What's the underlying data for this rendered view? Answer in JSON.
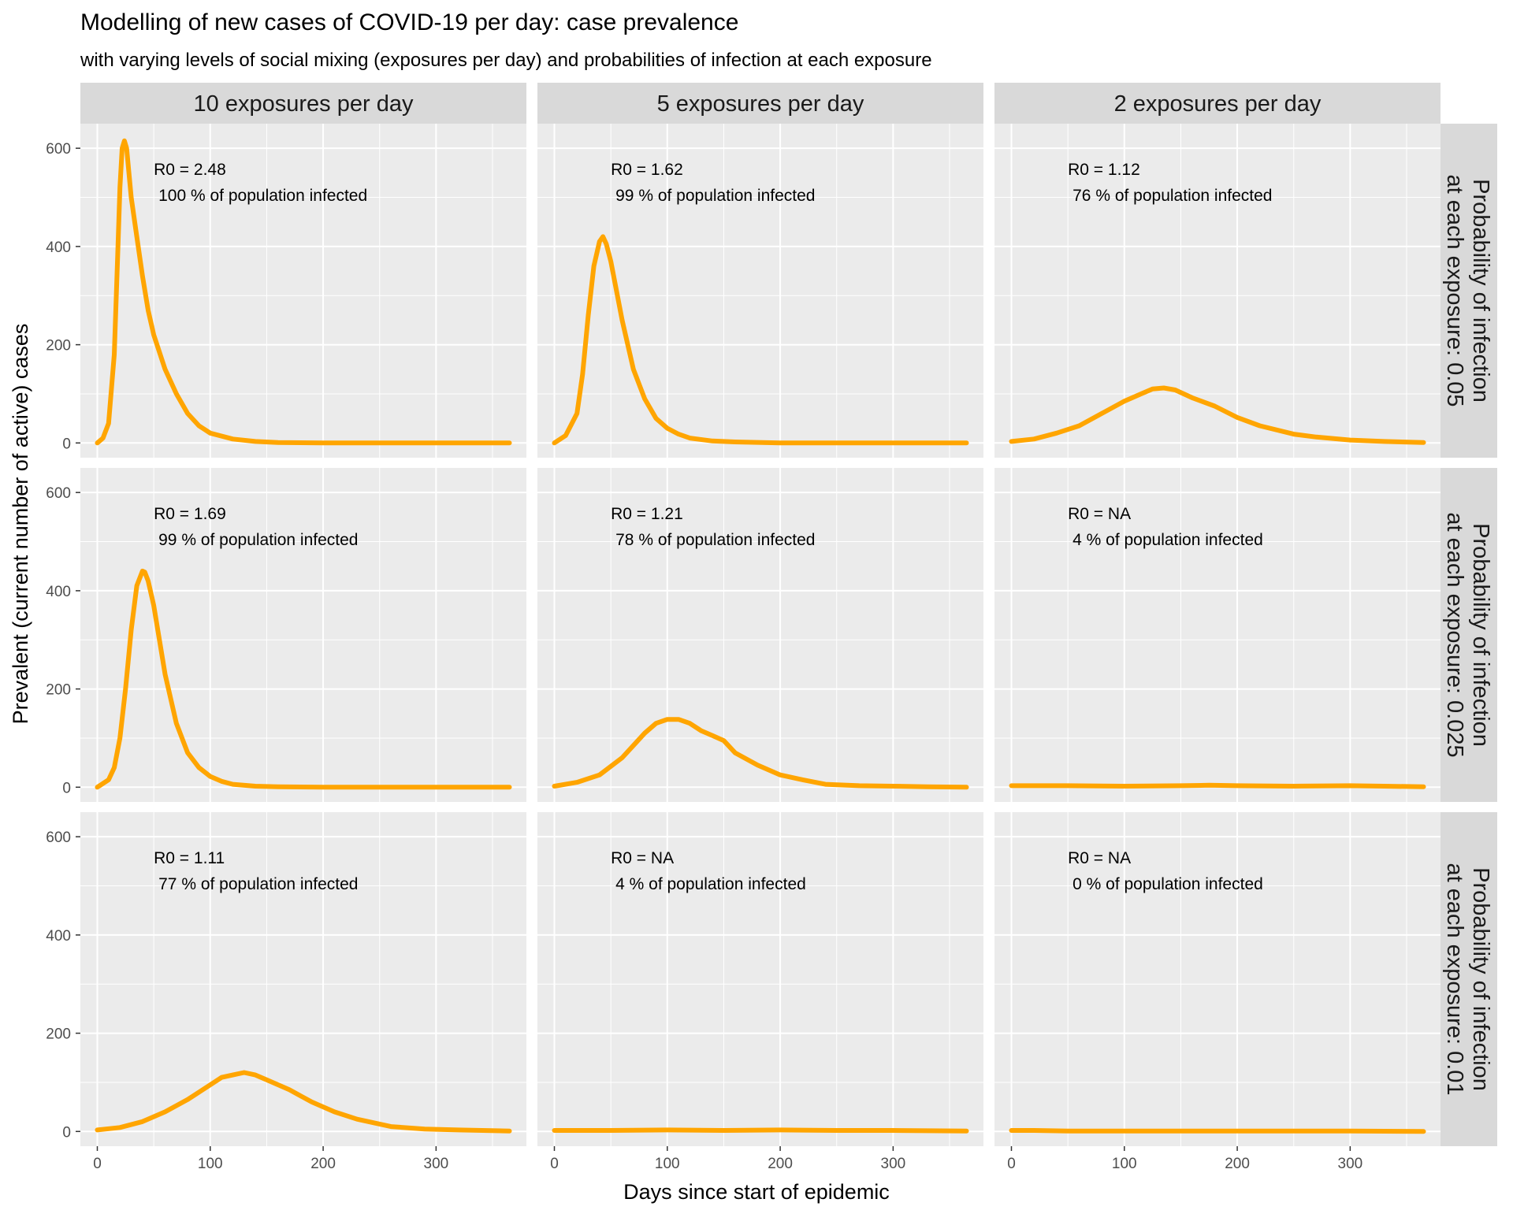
{
  "chart_data": {
    "type": "line",
    "title": "Modelling of new cases of COVID-19 per day: case prevalence",
    "subtitle": "with varying levels of social mixing (exposures per day) and probabilities of infection at each exposure",
    "xlabel": "Days since start of epidemic",
    "ylabel": "Prevalent (current number of active) cases",
    "xlim": [
      -15,
      380
    ],
    "ylim": [
      -30,
      650
    ],
    "x_ticks": [
      0,
      100,
      200,
      300
    ],
    "y_ticks": [
      0,
      200,
      400,
      600
    ],
    "grid": true,
    "line_color": "#FFA500",
    "panel_background": "#EBEBEB",
    "strip_background": "#D9D9D9",
    "column_labels": [
      "10 exposures per day",
      "5 exposures per day",
      "2 exposures per day"
    ],
    "row_labels": [
      [
        "Probability of infection",
        "at each exposure: 0.05"
      ],
      [
        "Probability of infection",
        "at each exposure: 0.025"
      ],
      [
        "Probability of infection",
        "at each exposure: 0.01"
      ]
    ],
    "panels": [
      {
        "row": 0,
        "col": 0,
        "annotation": [
          "R0 = 2.48",
          "100 % of population infected"
        ],
        "x": [
          0,
          5,
          10,
          15,
          18,
          20,
          22,
          24,
          26,
          28,
          30,
          35,
          40,
          45,
          50,
          60,
          70,
          80,
          90,
          100,
          120,
          140,
          160,
          200,
          250,
          300,
          365
        ],
        "y": [
          0,
          10,
          40,
          180,
          380,
          520,
          600,
          615,
          600,
          550,
          500,
          420,
          340,
          270,
          220,
          150,
          100,
          60,
          35,
          20,
          8,
          3,
          1,
          0,
          0,
          0,
          0
        ]
      },
      {
        "row": 0,
        "col": 1,
        "annotation": [
          "R0 = 1.62",
          "99 % of population infected"
        ],
        "x": [
          0,
          10,
          20,
          25,
          30,
          35,
          40,
          43,
          46,
          50,
          55,
          60,
          70,
          80,
          90,
          100,
          110,
          120,
          140,
          160,
          200,
          250,
          300,
          365
        ],
        "y": [
          0,
          15,
          60,
          140,
          260,
          360,
          410,
          420,
          405,
          370,
          310,
          250,
          150,
          90,
          50,
          30,
          18,
          10,
          4,
          2,
          0,
          0,
          0,
          0
        ]
      },
      {
        "row": 0,
        "col": 2,
        "annotation": [
          "R0 = 1.12",
          "76 % of population infected"
        ],
        "x": [
          0,
          20,
          40,
          60,
          80,
          100,
          115,
          125,
          135,
          145,
          160,
          180,
          200,
          220,
          250,
          270,
          300,
          330,
          365
        ],
        "y": [
          3,
          8,
          20,
          35,
          60,
          85,
          100,
          110,
          112,
          108,
          92,
          75,
          52,
          35,
          18,
          12,
          6,
          3,
          1
        ]
      },
      {
        "row": 1,
        "col": 0,
        "annotation": [
          "R0 = 1.69",
          "99 % of population infected"
        ],
        "x": [
          0,
          10,
          15,
          20,
          25,
          30,
          35,
          40,
          42,
          45,
          50,
          55,
          60,
          70,
          80,
          90,
          100,
          110,
          120,
          140,
          160,
          200,
          250,
          300,
          365
        ],
        "y": [
          0,
          15,
          40,
          100,
          200,
          320,
          410,
          440,
          438,
          420,
          370,
          300,
          230,
          130,
          70,
          40,
          22,
          12,
          6,
          2,
          1,
          0,
          0,
          0,
          0
        ]
      },
      {
        "row": 1,
        "col": 1,
        "annotation": [
          "R0 = 1.21",
          "78 % of population infected"
        ],
        "x": [
          0,
          20,
          40,
          60,
          70,
          80,
          90,
          100,
          110,
          120,
          130,
          140,
          150,
          160,
          180,
          200,
          220,
          240,
          270,
          300,
          330,
          365
        ],
        "y": [
          2,
          10,
          25,
          60,
          85,
          110,
          130,
          138,
          138,
          130,
          115,
          105,
          95,
          70,
          45,
          25,
          15,
          6,
          3,
          2,
          1,
          0
        ]
      },
      {
        "row": 1,
        "col": 2,
        "annotation": [
          "R0 =   NA",
          "4 % of population infected"
        ],
        "x": [
          0,
          50,
          100,
          150,
          175,
          200,
          250,
          300,
          330,
          365
        ],
        "y": [
          3,
          3,
          2,
          3,
          4,
          3,
          2,
          3,
          2,
          1
        ]
      },
      {
        "row": 2,
        "col": 0,
        "annotation": [
          "R0 = 1.11",
          "77 % of population infected"
        ],
        "x": [
          0,
          20,
          40,
          60,
          80,
          100,
          110,
          120,
          130,
          140,
          150,
          170,
          190,
          210,
          230,
          260,
          290,
          320,
          365
        ],
        "y": [
          3,
          8,
          20,
          40,
          65,
          95,
          110,
          115,
          120,
          115,
          105,
          85,
          60,
          40,
          25,
          10,
          5,
          3,
          1
        ]
      },
      {
        "row": 2,
        "col": 1,
        "annotation": [
          "R0 =   NA",
          "4 % of population infected"
        ],
        "x": [
          0,
          50,
          100,
          150,
          200,
          250,
          300,
          365
        ],
        "y": [
          2,
          2,
          3,
          2,
          3,
          2,
          2,
          1
        ]
      },
      {
        "row": 2,
        "col": 2,
        "annotation": [
          "R0 =   NA",
          "0 % of population infected"
        ],
        "x": [
          0,
          20,
          50,
          100,
          200,
          300,
          365
        ],
        "y": [
          2,
          2,
          1,
          1,
          1,
          1,
          0
        ]
      }
    ]
  }
}
